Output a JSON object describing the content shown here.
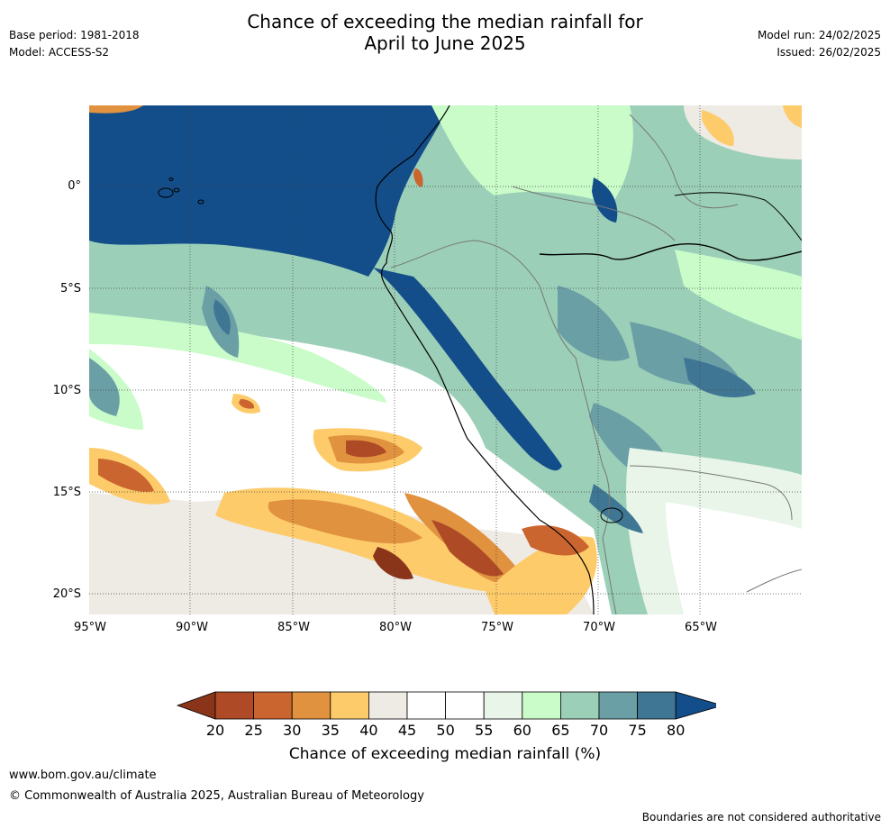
{
  "title": {
    "line1": "Chance of exceeding the median rainfall for",
    "line2": "April to June 2025"
  },
  "meta": {
    "base_period": "Base period: 1981-2018",
    "model": "Model: ACCESS-S2",
    "model_run": "Model run: 24/02/2025",
    "issued": "Issued: 26/02/2025"
  },
  "map": {
    "lat_ticks": [
      "0°",
      "5°S",
      "10°S",
      "15°S",
      "20°S"
    ],
    "lon_ticks": [
      "95°W",
      "90°W",
      "85°W",
      "80°W",
      "75°W",
      "70°W",
      "65°W"
    ],
    "lon_range": [
      -95,
      -60
    ],
    "lat_range": [
      -21,
      4
    ],
    "colors": {
      "ocean_high": "#134e8a",
      "land_base": "#6b9fa6"
    }
  },
  "legend": {
    "title": "Chance of exceeding median rainfall (%)",
    "labels": [
      "20",
      "25",
      "30",
      "35",
      "40",
      "45",
      "50",
      "55",
      "60",
      "65",
      "70",
      "75",
      "80"
    ],
    "colors": [
      "#8a3519",
      "#ae4a26",
      "#cb6530",
      "#e0923f",
      "#fdcb6a",
      "#eeeae4",
      "#ffffff",
      "#ffffff",
      "#e9f5e9",
      "#c9fcc8",
      "#9bcfb8",
      "#6b9fa6",
      "#3f7694",
      "#134e8a"
    ]
  },
  "footer": {
    "url": "www.bom.gov.au/climate",
    "copyright": "© Commonwealth of Australia 2025, Australian Bureau of Meteorology",
    "disclaimer": "Boundaries are not considered authoritative"
  }
}
